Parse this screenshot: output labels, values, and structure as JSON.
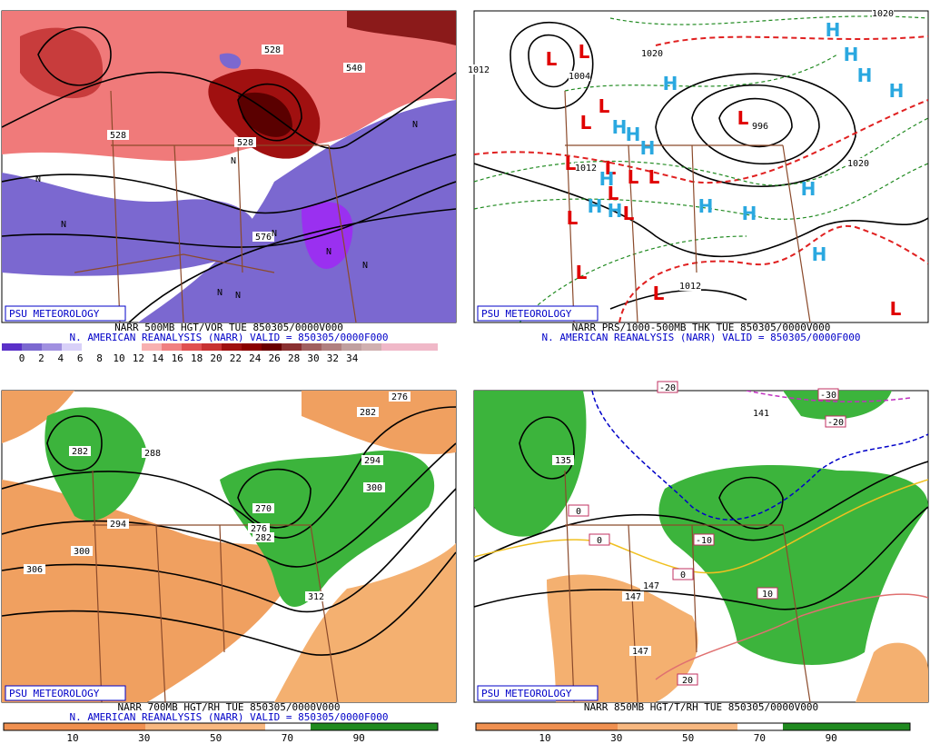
{
  "panels": [
    {
      "badge": "PSU METEOROLOGY",
      "caption": "NARR 500MB HGT/VOR TUE 850305/0000V000",
      "subcaption": "N. AMERICAN REANALYSIS (NARR) VALID = 850305/0000F000",
      "colorbar_labels": [
        0,
        2,
        4,
        6,
        8,
        10,
        12,
        14,
        16,
        18,
        20,
        22,
        24,
        26,
        28,
        30,
        32,
        34
      ],
      "map_labels": [
        "528",
        "540",
        "528",
        "528",
        "576"
      ],
      "n_symbol": "N"
    },
    {
      "badge": "PSU METEOROLOGY",
      "caption": "NARR PRS/1000-500MB THK TUE 850305/0000V000",
      "subcaption": "N. AMERICAN REANALYSIS (NARR) VALID = 850305/0000F000",
      "map_labels": [
        "1020",
        "1012",
        "996",
        "1012",
        "1020",
        "1004",
        "1012",
        "1020"
      ],
      "low": {
        "symbol": "L",
        "color": "#e00000"
      },
      "high": {
        "symbol": "H",
        "color": "#2aa8e0"
      }
    },
    {
      "badge": "PSU METEOROLOGY",
      "caption": "NARR 700MB HGT/RH TUE 850305/0000V000",
      "subcaption": "N. AMERICAN REANALYSIS (NARR) VALID = 850305/0000F000",
      "colorbar_labels": [
        10,
        30,
        50,
        70,
        90
      ],
      "map_labels": [
        "282",
        "288",
        "294",
        "300",
        "306",
        "270",
        "276",
        "282",
        "312",
        "276",
        "282",
        "294",
        "300"
      ]
    },
    {
      "badge": "PSU METEOROLOGY",
      "caption": "NARR 850MB HGT/T/RH TUE 850305/0000V000",
      "colorbar_labels": [
        10,
        30,
        50,
        70,
        90
      ],
      "map_labels": [
        "141",
        "135",
        "147",
        "147",
        "147"
      ],
      "temp_labels": [
        "-10",
        "0",
        "0",
        "10",
        "20",
        "-30",
        "-20",
        "-20",
        "0"
      ]
    }
  ]
}
